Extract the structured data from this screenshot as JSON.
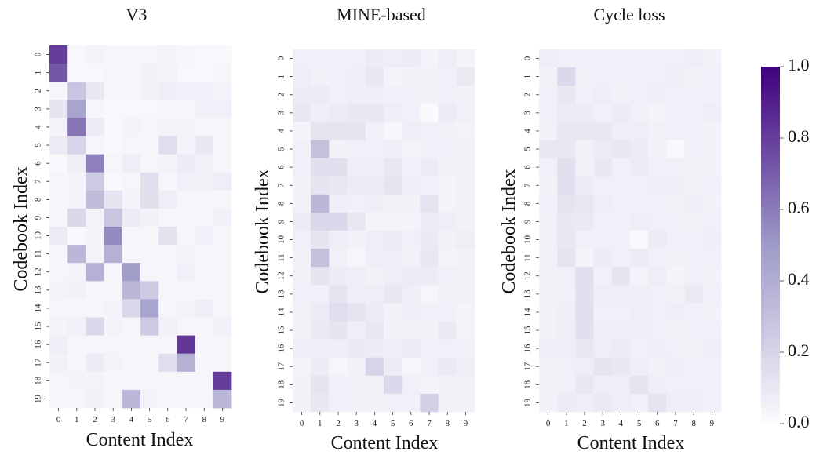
{
  "colormap": {
    "low": "#fcfbfd",
    "mid": "#9e9ac8",
    "high": "#3f007d"
  },
  "chart_data": [
    {
      "type": "heatmap",
      "title": "V3",
      "xlabel": "Content Index",
      "ylabel": "Codebook Index",
      "x_ticks": [
        "0",
        "1",
        "2",
        "3",
        "4",
        "5",
        "6",
        "7",
        "8",
        "9"
      ],
      "y_ticks": [
        "0",
        "1",
        "2",
        "3",
        "4",
        "5",
        "6",
        "7",
        "8",
        "9",
        "10",
        "11",
        "12",
        "13",
        "14",
        "15",
        "16",
        "17",
        "18",
        "19"
      ],
      "values": [
        [
          0.8,
          0.02,
          0.04,
          0.03,
          0.03,
          0.03,
          0.04,
          0.03,
          0.02,
          0.02
        ],
        [
          0.72,
          0.02,
          0.02,
          0.03,
          0.03,
          0.05,
          0.04,
          0.02,
          0.02,
          0.03
        ],
        [
          0.03,
          0.28,
          0.1,
          0.03,
          0.03,
          0.05,
          0.07,
          0.06,
          0.06,
          0.04
        ],
        [
          0.12,
          0.45,
          0.03,
          0.02,
          0.02,
          0.02,
          0.03,
          0.03,
          0.06,
          0.06
        ],
        [
          0.04,
          0.62,
          0.08,
          0.02,
          0.04,
          0.03,
          0.04,
          0.04,
          0.03,
          0.03
        ],
        [
          0.08,
          0.2,
          0.03,
          0.02,
          0.03,
          0.03,
          0.15,
          0.04,
          0.1,
          0.03
        ],
        [
          0.02,
          0.07,
          0.58,
          0.03,
          0.07,
          0.03,
          0.04,
          0.08,
          0.05,
          0.03
        ],
        [
          0.03,
          0.04,
          0.25,
          0.02,
          0.03,
          0.14,
          0.03,
          0.06,
          0.05,
          0.07
        ],
        [
          0.03,
          0.04,
          0.32,
          0.12,
          0.04,
          0.14,
          0.07,
          0.03,
          0.03,
          0.03
        ],
        [
          0.03,
          0.18,
          0.04,
          0.28,
          0.08,
          0.05,
          0.03,
          0.03,
          0.03,
          0.05
        ],
        [
          0.08,
          0.02,
          0.04,
          0.55,
          0.03,
          0.03,
          0.13,
          0.03,
          0.06,
          0.03
        ],
        [
          0.03,
          0.35,
          0.04,
          0.38,
          0.03,
          0.03,
          0.03,
          0.04,
          0.03,
          0.03
        ],
        [
          0.03,
          0.04,
          0.38,
          0.03,
          0.48,
          0.03,
          0.03,
          0.06,
          0.03,
          0.03
        ],
        [
          0.04,
          0.05,
          0.03,
          0.03,
          0.35,
          0.25,
          0.03,
          0.03,
          0.03,
          0.03
        ],
        [
          0.03,
          0.03,
          0.03,
          0.04,
          0.18,
          0.45,
          0.03,
          0.04,
          0.07,
          0.03
        ],
        [
          0.04,
          0.06,
          0.18,
          0.04,
          0.03,
          0.25,
          0.05,
          0.03,
          0.03,
          0.05
        ],
        [
          0.07,
          0.03,
          0.03,
          0.03,
          0.03,
          0.03,
          0.03,
          0.82,
          0.03,
          0.03
        ],
        [
          0.05,
          0.03,
          0.08,
          0.04,
          0.03,
          0.03,
          0.15,
          0.38,
          0.03,
          0.03
        ],
        [
          0.03,
          0.04,
          0.04,
          0.03,
          0.03,
          0.03,
          0.03,
          0.03,
          0.03,
          0.8
        ],
        [
          0.03,
          0.03,
          0.05,
          0.03,
          0.35,
          0.04,
          0.03,
          0.03,
          0.03,
          0.35
        ]
      ]
    },
    {
      "type": "heatmap",
      "title": "MINE-based",
      "xlabel": "Content Index",
      "ylabel": "Codebook Index",
      "x_ticks": [
        "0",
        "1",
        "2",
        "3",
        "4",
        "5",
        "6",
        "7",
        "8",
        "9"
      ],
      "y_ticks": [
        "0",
        "1",
        "2",
        "3",
        "4",
        "5",
        "6",
        "7",
        "8",
        "9",
        "10",
        "11",
        "12",
        "13",
        "14",
        "15",
        "16",
        "17",
        "18",
        "19"
      ],
      "values": [
        [
          0.06,
          0.06,
          0.06,
          0.06,
          0.08,
          0.07,
          0.08,
          0.04,
          0.07,
          0.04
        ],
        [
          0.07,
          0.05,
          0.06,
          0.07,
          0.1,
          0.04,
          0.05,
          0.05,
          0.06,
          0.09
        ],
        [
          0.08,
          0.08,
          0.06,
          0.07,
          0.07,
          0.06,
          0.06,
          0.05,
          0.06,
          0.05
        ],
        [
          0.1,
          0.07,
          0.08,
          0.1,
          0.1,
          0.07,
          0.06,
          0.01,
          0.08,
          0.06
        ],
        [
          0.04,
          0.12,
          0.12,
          0.12,
          0.06,
          0.03,
          0.07,
          0.06,
          0.05,
          0.04
        ],
        [
          0.06,
          0.3,
          0.05,
          0.06,
          0.06,
          0.07,
          0.04,
          0.06,
          0.06,
          0.05
        ],
        [
          0.06,
          0.14,
          0.14,
          0.07,
          0.07,
          0.1,
          0.06,
          0.08,
          0.05,
          0.06
        ],
        [
          0.05,
          0.12,
          0.1,
          0.08,
          0.08,
          0.12,
          0.07,
          0.06,
          0.04,
          0.06
        ],
        [
          0.05,
          0.35,
          0.07,
          0.06,
          0.07,
          0.05,
          0.05,
          0.12,
          0.04,
          0.06
        ],
        [
          0.08,
          0.18,
          0.18,
          0.1,
          0.04,
          0.04,
          0.04,
          0.08,
          0.07,
          0.05
        ],
        [
          0.06,
          0.12,
          0.07,
          0.05,
          0.07,
          0.08,
          0.06,
          0.09,
          0.05,
          0.07
        ],
        [
          0.05,
          0.3,
          0.06,
          0.03,
          0.07,
          0.07,
          0.05,
          0.1,
          0.04,
          0.05
        ],
        [
          0.05,
          0.12,
          0.08,
          0.07,
          0.05,
          0.07,
          0.08,
          0.08,
          0.06,
          0.05
        ],
        [
          0.06,
          0.06,
          0.12,
          0.07,
          0.07,
          0.1,
          0.07,
          0.03,
          0.05,
          0.06
        ],
        [
          0.05,
          0.08,
          0.15,
          0.12,
          0.08,
          0.05,
          0.07,
          0.06,
          0.06,
          0.04
        ],
        [
          0.05,
          0.09,
          0.12,
          0.07,
          0.1,
          0.05,
          0.05,
          0.05,
          0.09,
          0.04
        ],
        [
          0.07,
          0.07,
          0.07,
          0.09,
          0.08,
          0.07,
          0.08,
          0.06,
          0.06,
          0.06
        ],
        [
          0.04,
          0.08,
          0.03,
          0.05,
          0.2,
          0.08,
          0.03,
          0.06,
          0.09,
          0.07
        ],
        [
          0.05,
          0.12,
          0.06,
          0.05,
          0.05,
          0.18,
          0.06,
          0.04,
          0.05,
          0.05
        ],
        [
          0.05,
          0.1,
          0.06,
          0.05,
          0.05,
          0.06,
          0.06,
          0.22,
          0.05,
          0.05
        ]
      ]
    },
    {
      "type": "heatmap",
      "title": "Cycle loss",
      "xlabel": "Content Index",
      "ylabel": "Codebook Index",
      "x_ticks": [
        "0",
        "1",
        "2",
        "3",
        "4",
        "5",
        "6",
        "7",
        "8",
        "9"
      ],
      "y_ticks": [
        "0",
        "1",
        "2",
        "3",
        "4",
        "5",
        "6",
        "7",
        "8",
        "9",
        "10",
        "11",
        "12",
        "13",
        "14",
        "15",
        "16",
        "17",
        "18",
        "19"
      ],
      "values": [
        [
          0.07,
          0.06,
          0.06,
          0.06,
          0.06,
          0.06,
          0.06,
          0.06,
          0.07,
          0.05
        ],
        [
          0.05,
          0.18,
          0.05,
          0.06,
          0.06,
          0.06,
          0.06,
          0.07,
          0.05,
          0.06
        ],
        [
          0.06,
          0.1,
          0.06,
          0.07,
          0.05,
          0.06,
          0.07,
          0.06,
          0.06,
          0.06
        ],
        [
          0.06,
          0.08,
          0.08,
          0.06,
          0.08,
          0.06,
          0.04,
          0.06,
          0.06,
          0.07
        ],
        [
          0.05,
          0.1,
          0.1,
          0.1,
          0.07,
          0.07,
          0.05,
          0.06,
          0.06,
          0.05
        ],
        [
          0.1,
          0.1,
          0.05,
          0.08,
          0.1,
          0.08,
          0.05,
          0.02,
          0.06,
          0.05
        ],
        [
          0.06,
          0.14,
          0.05,
          0.1,
          0.06,
          0.08,
          0.06,
          0.06,
          0.05,
          0.05
        ],
        [
          0.05,
          0.14,
          0.08,
          0.06,
          0.06,
          0.06,
          0.07,
          0.07,
          0.05,
          0.06
        ],
        [
          0.06,
          0.12,
          0.1,
          0.07,
          0.06,
          0.06,
          0.06,
          0.05,
          0.07,
          0.05
        ],
        [
          0.05,
          0.1,
          0.09,
          0.06,
          0.06,
          0.07,
          0.06,
          0.06,
          0.05,
          0.06
        ],
        [
          0.05,
          0.1,
          0.06,
          0.06,
          0.06,
          0.02,
          0.08,
          0.06,
          0.06,
          0.07
        ],
        [
          0.05,
          0.12,
          0.04,
          0.08,
          0.06,
          0.08,
          0.06,
          0.05,
          0.06,
          0.06
        ],
        [
          0.05,
          0.06,
          0.15,
          0.06,
          0.12,
          0.04,
          0.07,
          0.04,
          0.06,
          0.05
        ],
        [
          0.05,
          0.06,
          0.14,
          0.07,
          0.07,
          0.07,
          0.06,
          0.05,
          0.09,
          0.06
        ],
        [
          0.05,
          0.07,
          0.15,
          0.06,
          0.06,
          0.07,
          0.06,
          0.07,
          0.06,
          0.05
        ],
        [
          0.05,
          0.07,
          0.14,
          0.07,
          0.07,
          0.07,
          0.06,
          0.05,
          0.06,
          0.06
        ],
        [
          0.07,
          0.07,
          0.1,
          0.07,
          0.08,
          0.06,
          0.07,
          0.06,
          0.05,
          0.07
        ],
        [
          0.05,
          0.06,
          0.07,
          0.12,
          0.1,
          0.07,
          0.05,
          0.07,
          0.06,
          0.06
        ],
        [
          0.05,
          0.06,
          0.1,
          0.07,
          0.07,
          0.12,
          0.07,
          0.06,
          0.06,
          0.06
        ],
        [
          0.05,
          0.08,
          0.07,
          0.09,
          0.07,
          0.06,
          0.12,
          0.07,
          0.07,
          0.06
        ]
      ]
    }
  ],
  "colorbar": {
    "ticks": [
      "0.0",
      "0.2",
      "0.4",
      "0.6",
      "0.8",
      "1.0"
    ],
    "tick_values": [
      0,
      0.2,
      0.4,
      0.6,
      0.8,
      1.0
    ],
    "range": [
      0,
      1
    ]
  }
}
